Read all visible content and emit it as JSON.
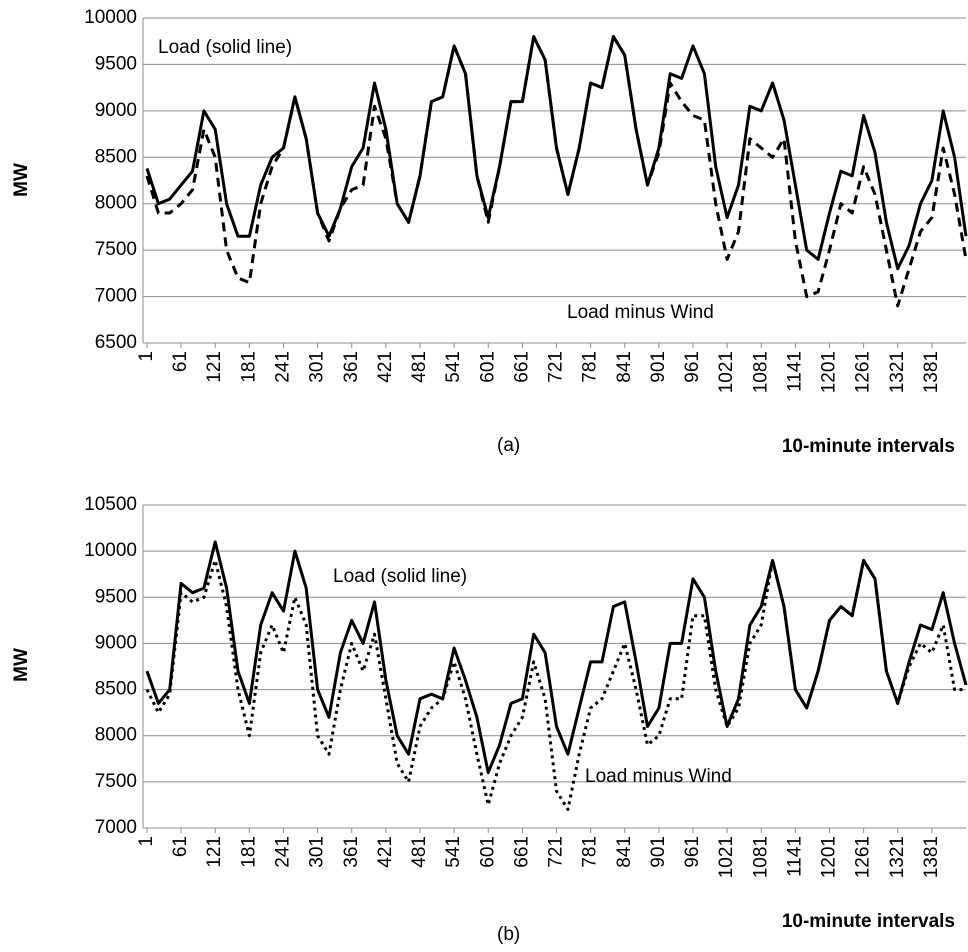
{
  "chart_data": [
    {
      "type": "line",
      "caption": "(a)",
      "xlabel": "10-minute intervals",
      "ylabel": "MW",
      "x": [
        1,
        21,
        41,
        61,
        81,
        101,
        121,
        141,
        161,
        181,
        201,
        221,
        241,
        261,
        281,
        301,
        321,
        341,
        361,
        381,
        401,
        421,
        441,
        461,
        481,
        501,
        521,
        541,
        561,
        581,
        601,
        621,
        641,
        661,
        681,
        701,
        721,
        741,
        761,
        781,
        801,
        821,
        841,
        861,
        881,
        901,
        921,
        941,
        961,
        981,
        1001,
        1021,
        1041,
        1061,
        1081,
        1101,
        1121,
        1141,
        1161,
        1181,
        1201,
        1221,
        1241,
        1261,
        1281,
        1301,
        1321,
        1341,
        1361,
        1381,
        1401,
        1421,
        1441
      ],
      "series": [
        {
          "name": "Load (solid line)",
          "color": "#000000",
          "dash": "none",
          "values": [
            8380,
            8000,
            8050,
            8200,
            8350,
            9000,
            8800,
            8000,
            7650,
            7650,
            8200,
            8500,
            8600,
            9150,
            8700,
            7900,
            7650,
            7950,
            8400,
            8600,
            9300,
            8800,
            8000,
            7800,
            8300,
            9100,
            9150,
            9700,
            9400,
            8300,
            7850,
            8400,
            9100,
            9100,
            9800,
            9550,
            8600,
            8100,
            8600,
            9300,
            9250,
            9800,
            9600,
            8800,
            8200,
            8600,
            9400,
            9350,
            9700,
            9400,
            8400,
            7850,
            8200,
            9050,
            9000,
            9300,
            8900,
            8200,
            7500,
            7400,
            7900,
            8350,
            8300,
            8950,
            8550,
            7800,
            7300,
            7550,
            8000,
            8250,
            9000,
            8500,
            7650
          ]
        },
        {
          "name": "Load minus Wind",
          "color": "#000000",
          "dash": "9,6",
          "values": [
            8300,
            7900,
            7900,
            8000,
            8150,
            8800,
            8500,
            7500,
            7200,
            7150,
            8000,
            8400,
            8600,
            9150,
            8700,
            7900,
            7600,
            7950,
            8150,
            8200,
            9050,
            8700,
            8000,
            7800,
            8300,
            9100,
            9150,
            9700,
            9400,
            8300,
            7800,
            8400,
            9100,
            9100,
            9800,
            9550,
            8600,
            8100,
            8600,
            9300,
            9250,
            9800,
            9600,
            8800,
            8200,
            8550,
            9300,
            9100,
            8950,
            8900,
            8000,
            7400,
            7700,
            8700,
            8600,
            8500,
            8700,
            7600,
            7000,
            7050,
            7500,
            8000,
            7900,
            8400,
            8100,
            7500,
            6900,
            7300,
            7700,
            7850,
            8600,
            8100,
            7400
          ]
        }
      ],
      "xlim": [
        -6,
        1441
      ],
      "xticks": [
        1,
        61,
        121,
        181,
        241,
        301,
        361,
        421,
        481,
        541,
        601,
        661,
        721,
        781,
        841,
        901,
        961,
        1021,
        1081,
        1141,
        1201,
        1261,
        1321,
        1381
      ],
      "ylim": [
        6500,
        10000
      ],
      "yticks": [
        6500,
        7000,
        7500,
        8000,
        8500,
        9000,
        9500,
        10000
      ],
      "grid": true
    },
    {
      "type": "line",
      "caption": "(b)",
      "xlabel": "10-minute intervals",
      "ylabel": "MW",
      "x": [
        1,
        21,
        41,
        61,
        81,
        101,
        121,
        141,
        161,
        181,
        201,
        221,
        241,
        261,
        281,
        301,
        321,
        341,
        361,
        381,
        401,
        421,
        441,
        461,
        481,
        501,
        521,
        541,
        561,
        581,
        601,
        621,
        641,
        661,
        681,
        701,
        721,
        741,
        761,
        781,
        801,
        821,
        841,
        861,
        881,
        901,
        921,
        941,
        961,
        981,
        1001,
        1021,
        1041,
        1061,
        1081,
        1101,
        1121,
        1141,
        1161,
        1181,
        1201,
        1221,
        1241,
        1261,
        1281,
        1301,
        1321,
        1341,
        1361,
        1381,
        1401,
        1421,
        1441
      ],
      "series": [
        {
          "name": "Load (solid line)",
          "color": "#000000",
          "dash": "none",
          "values": [
            8700,
            8350,
            8500,
            9650,
            9550,
            9600,
            10100,
            9600,
            8700,
            8350,
            9200,
            9550,
            9350,
            10000,
            9600,
            8500,
            8200,
            8900,
            9250,
            9000,
            9450,
            8600,
            8000,
            7800,
            8400,
            8450,
            8400,
            8950,
            8600,
            8200,
            7600,
            7900,
            8350,
            8400,
            9100,
            8900,
            8100,
            7800,
            8300,
            8800,
            8800,
            9400,
            9450,
            8800,
            8100,
            8300,
            9000,
            9000,
            9700,
            9500,
            8700,
            8100,
            8400,
            9200,
            9400,
            9900,
            9400,
            8500,
            8300,
            8700,
            9250,
            9400,
            9300,
            9900,
            9700,
            8700,
            8350,
            8800,
            9200,
            9150,
            9550,
            9000,
            8550
          ]
        },
        {
          "name": "Load minus Wind",
          "color": "#000000",
          "dash": "3,4",
          "values": [
            8500,
            8250,
            8450,
            9550,
            9450,
            9500,
            9900,
            9400,
            8500,
            8000,
            8900,
            9200,
            8900,
            9500,
            9200,
            8000,
            7800,
            8500,
            9000,
            8700,
            9100,
            8400,
            7700,
            7500,
            8100,
            8300,
            8400,
            8800,
            8400,
            7800,
            7250,
            7700,
            8000,
            8200,
            8800,
            8400,
            7400,
            7200,
            7800,
            8300,
            8400,
            8700,
            9000,
            8500,
            7900,
            8000,
            8400,
            8400,
            9300,
            9300,
            8500,
            8100,
            8300,
            9000,
            9200,
            9900,
            9400,
            8500,
            8300,
            8700,
            9250,
            9400,
            9300,
            9900,
            9700,
            8700,
            8350,
            8750,
            9000,
            8900,
            9200,
            8500,
            8500
          ]
        }
      ],
      "xlim": [
        -6,
        1441
      ],
      "xticks": [
        1,
        61,
        121,
        181,
        241,
        301,
        361,
        421,
        481,
        541,
        601,
        661,
        721,
        781,
        841,
        901,
        961,
        1021,
        1081,
        1141,
        1201,
        1261,
        1321,
        1381
      ],
      "ylim": [
        7000,
        10500
      ],
      "yticks": [
        7000,
        7500,
        8000,
        8500,
        9000,
        9500,
        10000,
        10500
      ],
      "grid": true
    }
  ]
}
